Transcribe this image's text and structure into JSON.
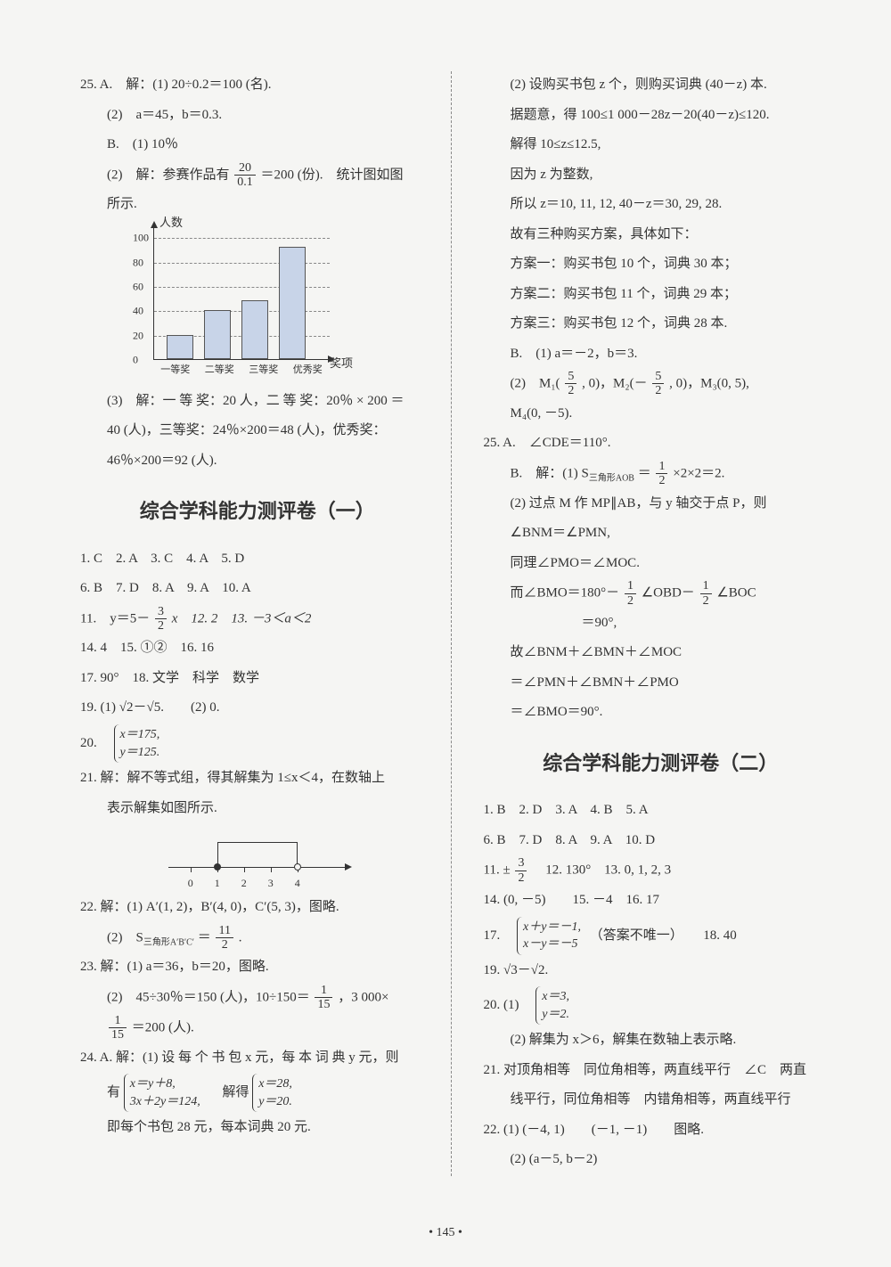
{
  "page_number": "• 145 •",
  "left": {
    "q25_A_1": "25. A.　解：(1) 20÷0.2＝100 (名).",
    "q25_A_2": "(2)　a＝45，b＝0.3.",
    "q25_B_1": "B.　(1) 10％",
    "q25_B_2_pre": "(2)　解：参赛作品有",
    "q25_B_2_frac_num": "20",
    "q25_B_2_frac_den": "0.1",
    "q25_B_2_post": "＝200 (份).　统计图如图",
    "q25_B_2_end": "所示.",
    "chart": {
      "ylabel": "人数",
      "xlabel_right": "奖项",
      "yticks": [
        "20",
        "40",
        "60",
        "80",
        "100"
      ],
      "ytick_vals": [
        20,
        40,
        60,
        80,
        100
      ],
      "ymax": 110,
      "bars": [
        {
          "label": "一等奖",
          "value": 20
        },
        {
          "label": "二等奖",
          "value": 40
        },
        {
          "label": "三等奖",
          "value": 48
        },
        {
          "label": "优秀奖",
          "value": 92
        }
      ],
      "bar_color": "#c8d4e8",
      "bar_border": "#555555",
      "grid_color": "#888888"
    },
    "q25_3a": "(3)　解：一 等 奖：20 人，二 等 奖：20％ × 200 ＝",
    "q25_3b": "40 (人)，三等奖：24％×200＝48 (人)，优秀奖：",
    "q25_3c": "46％×200＝92 (人).",
    "section1_title": "综合学科能力测评卷（一）",
    "s1_row1": "1. C　2. A　3. C　4. A　5. D",
    "s1_row2": "6. B　7. D　8. A　9. A　10. A",
    "s1_q11_pre": "11.　y＝5－",
    "s1_q11_frac_num": "3",
    "s1_q11_frac_den": "2",
    "s1_q11_post": "x　12. 2　13. －3＜a＜2",
    "s1_q14": "14. 4　15. ①②　16. 16",
    "s1_q17": "17. 90°　18. 文学　科学　数学",
    "s1_q19": "19. (1) √2－√5.　　(2) 0.",
    "s1_q20_pre": "20.　",
    "s1_q20_l1": "x＝175,",
    "s1_q20_l2": "y＝125.",
    "s1_q21a": "21. 解：解不等式组，得其解集为 1≤x＜4，在数轴上",
    "s1_q21b": "表示解集如图所示.",
    "numline": {
      "ticks": [
        0,
        1,
        2,
        3,
        4
      ],
      "filled": 1,
      "open": 4
    },
    "s1_q22a": "22. 解：(1) A′(1, 2)，B′(4, 0)，C′(5, 3)，图略.",
    "s1_q22b_pre": "(2)　S",
    "s1_q22b_sub": "三角形A′B′C′",
    "s1_q22b_mid": "＝",
    "s1_q22b_num": "11",
    "s1_q22b_den": "2",
    "s1_q22b_post": ".",
    "s1_q23a": "23. 解：(1) a＝36，b＝20，图略.",
    "s1_q23b_pre": "(2)　45÷30％＝150 (人)，10÷150＝",
    "s1_q23b_num": "1",
    "s1_q23b_den": "15",
    "s1_q23b_post": "，3 000×",
    "s1_q23c_num": "1",
    "s1_q23c_den": "15",
    "s1_q23c_post": "＝200 (人).",
    "s1_q24a": "24. A. 解：(1) 设 每 个 书 包 x 元，每 本 词 典 y 元，则",
    "s1_q24b_pre": "有",
    "s1_q24b_b1l1": "x＝y＋8,",
    "s1_q24b_b1l2": "3x＋2y＝124,",
    "s1_q24b_mid": "　解得",
    "s1_q24b_b2l1": "x＝28,",
    "s1_q24b_b2l2": "y＝20.",
    "s1_q24c": "即每个书包 28 元，每本词典 20 元."
  },
  "right": {
    "r1": "(2) 设购买书包 z 个，则购买词典 (40－z) 本.",
    "r2": "据题意，得 100≤1 000－28z－20(40－z)≤120.",
    "r3": "解得 10≤z≤12.5,",
    "r4": "因为 z 为整数,",
    "r5": "所以 z＝10, 11, 12, 40－z＝30, 29, 28.",
    "r6": "故有三种购买方案，具体如下：",
    "r7": "方案一：购买书包 10 个，词典 30 本；",
    "r8": "方案二：购买书包 11 个，词典 29 本；",
    "r9": "方案三：购买书包 12 个，词典 28 本.",
    "r10": "B.　(1) a＝－2，b＝3.",
    "r11_pre": "(2)　M₁(",
    "r11_n1": "5",
    "r11_d1": "2",
    "r11_mid1": ", 0)，M₂(－",
    "r11_n2": "5",
    "r11_d2": "2",
    "r11_mid2": ", 0)，M₃(0, 5),",
    "r12": "M₄(0, －5).",
    "r25a": "25. A.　∠CDE＝110°.",
    "r25b_pre": "B.　解：(1) S",
    "r25b_sub": "三角形AOB",
    "r25b_mid": "＝",
    "r25b_num": "1",
    "r25b_den": "2",
    "r25b_post": "×2×2＝2.",
    "r25c": "(2) 过点 M 作 MP∥AB，与 y 轴交于点 P，则",
    "r25d": "∠BNM＝∠PMN,",
    "r25e": "同理∠PMO＝∠MOC.",
    "r25f_pre": "而∠BMO＝180°－",
    "r25f_n1": "1",
    "r25f_d1": "2",
    "r25f_mid": "∠OBD－",
    "r25f_n2": "1",
    "r25f_d2": "2",
    "r25f_post": "∠BOC",
    "r25g": "＝90°,",
    "r25h": "故∠BNM＋∠BMN＋∠MOC",
    "r25i": "＝∠PMN＋∠BMN＋∠PMO",
    "r25j": "＝∠BMO＝90°.",
    "section2_title": "综合学科能力测评卷（二）",
    "s2_row1": "1. B　2. D　3. A　4. B　5. A",
    "s2_row2": "6. B　7. D　8. A　9. A　10. D",
    "s2_q11_pre": "11. ±",
    "s2_q11_num": "3",
    "s2_q11_den": "2",
    "s2_q11_post": "　12. 130°　13. 0, 1, 2, 3",
    "s2_q14": "14. (0, －5)　　15. －4　16. 17",
    "s2_q17_pre": "17.　",
    "s2_q17_l1": "x＋y＝－1,",
    "s2_q17_l2": "x－y＝－5",
    "s2_q17_post": "（答案不唯一）　　18. 40",
    "s2_q19": "19. √3－√2.",
    "s2_q20_pre": "20. (1)　",
    "s2_q20_l1": "x＝3,",
    "s2_q20_l2": "y＝2.",
    "s2_q20b": "(2) 解集为 x＞6，解集在数轴上表示略.",
    "s2_q21a": "21. 对顶角相等　同位角相等，两直线平行　∠C　两直",
    "s2_q21b": "线平行，同位角相等　内错角相等，两直线平行",
    "s2_q22a": "22. (1) (－4, 1)　　(－1, －1)　　图略.",
    "s2_q22b": "(2) (a－5, b－2)"
  }
}
